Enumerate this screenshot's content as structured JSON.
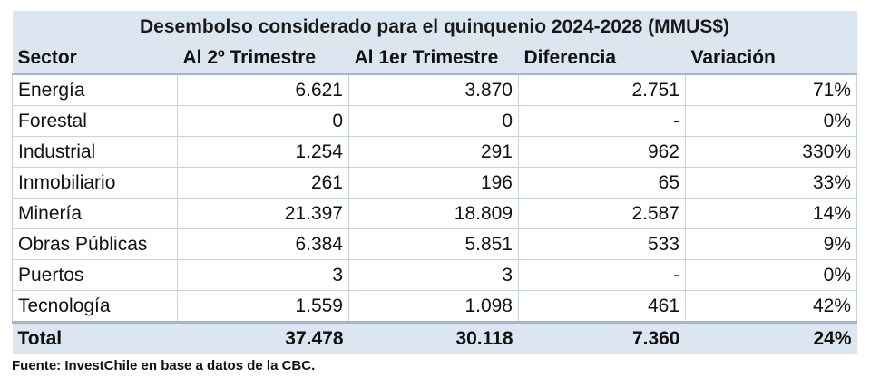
{
  "chart_data": {
    "type": "table",
    "title": "Desembolso considerado para el quinquenio 2024-2028 (MMUS$)",
    "columns": [
      "Sector",
      "Al 2º Trimestre",
      "Al 1er Trimestre",
      "Diferencia",
      "Variación"
    ],
    "rows": [
      [
        "Energía",
        "6.621",
        "3.870",
        "2.751",
        "71%"
      ],
      [
        "Forestal",
        "0",
        "0",
        "-",
        "0%"
      ],
      [
        "Industrial",
        "1.254",
        "291",
        "962",
        "330%"
      ],
      [
        "Inmobiliario",
        "261",
        "196",
        "65",
        "33%"
      ],
      [
        "Minería",
        "21.397",
        "18.809",
        "2.587",
        "14%"
      ],
      [
        "Obras Públicas",
        "6.384",
        "5.851",
        "533",
        "9%"
      ],
      [
        "Puertos",
        "3",
        "3",
        "-",
        "0%"
      ],
      [
        "Tecnología",
        "1.559",
        "1.098",
        "461",
        "42%"
      ]
    ],
    "total": [
      "Total",
      "37.478",
      "30.118",
      "7.360",
      "24%"
    ],
    "source": "Fuente: InvestChile en base a datos de la CBC."
  }
}
